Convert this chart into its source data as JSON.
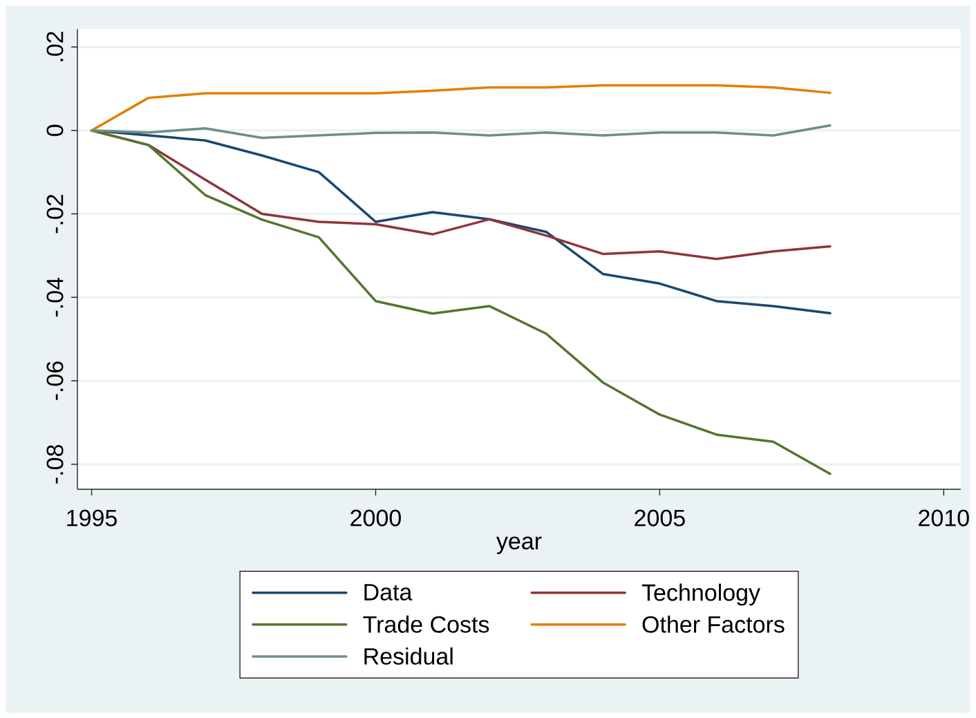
{
  "chart_data": {
    "type": "line",
    "xlabel": "year",
    "x": [
      1995,
      1996,
      1997,
      1998,
      1999,
      2000,
      2001,
      2002,
      2003,
      2004,
      2005,
      2006,
      2007,
      2008
    ],
    "series": [
      {
        "name": "Data",
        "color": "#1a476f",
        "values": [
          0,
          -0.0012,
          -0.0024,
          -0.006,
          -0.01,
          -0.0219,
          -0.0196,
          -0.0213,
          -0.0243,
          -0.0344,
          -0.0367,
          -0.0409,
          -0.0421,
          -0.0438
        ]
      },
      {
        "name": "Technology",
        "color": "#90353b",
        "values": [
          0,
          -0.0035,
          -0.0118,
          -0.02,
          -0.0219,
          -0.0225,
          -0.0249,
          -0.0213,
          -0.0252,
          -0.0296,
          -0.029,
          -0.0308,
          -0.029,
          -0.0278
        ]
      },
      {
        "name": "Trade Costs",
        "color": "#55752f",
        "values": [
          0,
          -0.0035,
          -0.0155,
          -0.0214,
          -0.0256,
          -0.0409,
          -0.0439,
          -0.0421,
          -0.0487,
          -0.0604,
          -0.0681,
          -0.0729,
          -0.0746,
          -0.0823
        ]
      },
      {
        "name": "Other Factors",
        "color": "#e37e00",
        "values": [
          0,
          0.0078,
          0.0089,
          0.0089,
          0.0089,
          0.0089,
          0.0095,
          0.0103,
          0.0103,
          0.0108,
          0.0108,
          0.0108,
          0.0103,
          0.009
        ]
      },
      {
        "name": "Residual",
        "color": "#6e8e84",
        "values": [
          0,
          -0.0005,
          0.0005,
          -0.0018,
          -0.0012,
          -0.0006,
          -0.0005,
          -0.0012,
          -0.0005,
          -0.0012,
          -0.0005,
          -0.0005,
          -0.0012,
          0.0012
        ]
      }
    ],
    "xlim": [
      1994.75,
      2010.3
    ],
    "ylim": [
      -0.086,
      0.0243
    ],
    "xticks": [
      1995,
      2000,
      2005,
      2010
    ],
    "yticks": [
      {
        "value": -0.08,
        "label": "-.08"
      },
      {
        "value": -0.06,
        "label": "-.06"
      },
      {
        "value": -0.04,
        "label": "-.04"
      },
      {
        "value": -0.02,
        "label": "-.02"
      },
      0,
      {
        "value": 0.02,
        "label": ".02"
      }
    ],
    "grid": "y",
    "legend": "bottom"
  }
}
